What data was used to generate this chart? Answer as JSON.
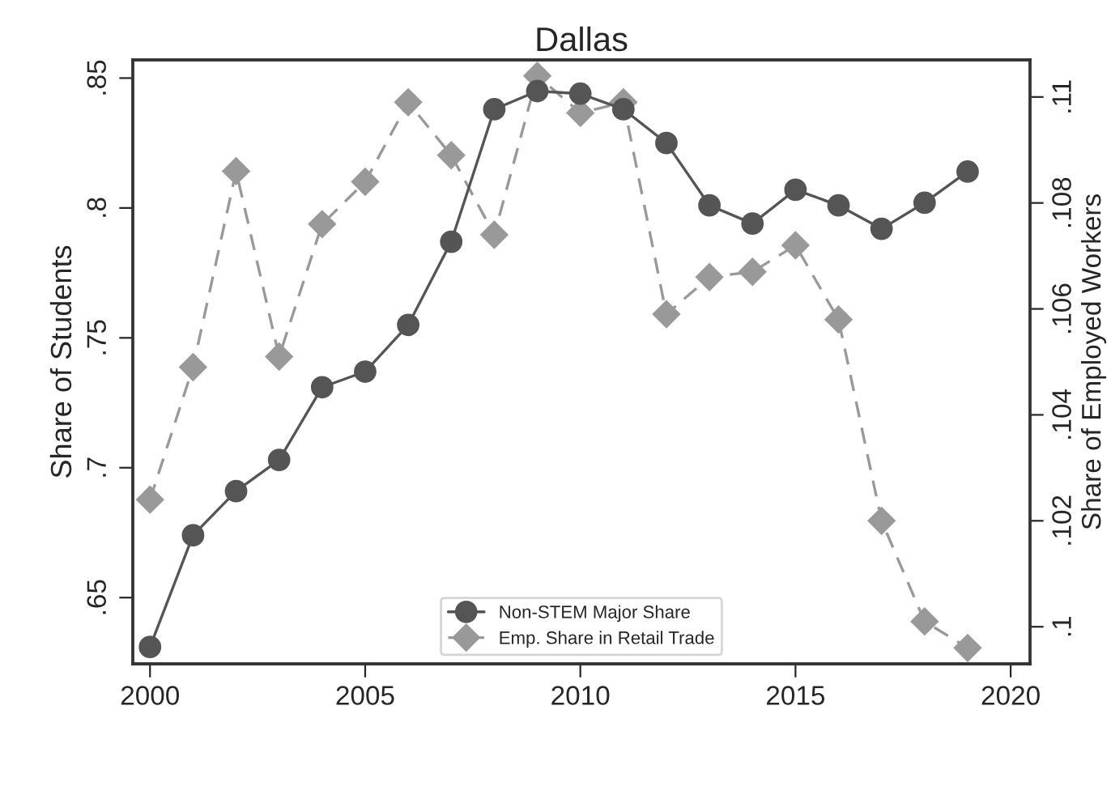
{
  "chart_data": {
    "type": "line",
    "title": "Dallas",
    "ylabel": "Share of Students",
    "y2label": "Share of Employed Workers",
    "x": [
      2000,
      2001,
      2002,
      2003,
      2004,
      2005,
      2006,
      2007,
      2008,
      2009,
      2010,
      2011,
      2012,
      2013,
      2014,
      2015,
      2016,
      2017,
      2018,
      2019
    ],
    "series": [
      {
        "name": "Non-STEM Major Share",
        "color": "#555555",
        "marker": "circle",
        "line_style": "solid",
        "values": [
          0.631,
          0.674,
          0.691,
          0.703,
          0.731,
          0.737,
          0.755,
          0.787,
          0.838,
          0.845,
          0.844,
          0.838,
          0.825,
          0.801,
          0.794,
          0.807,
          0.801,
          0.792,
          0.802,
          0.814
        ]
      },
      {
        "name": "Emp. Share in Retail Trade",
        "color": "#999999",
        "marker": "diamond",
        "line_style": "dashed",
        "axis": "y2",
        "values": [
          0.1024,
          0.1049,
          0.1086,
          0.1051,
          0.1076,
          0.1084,
          0.1099,
          0.1089,
          0.1074,
          0.1104,
          0.1097,
          0.1099,
          0.1059,
          0.1066,
          0.1067,
          0.1072,
          0.1058,
          0.102,
          0.1001,
          0.0996
        ]
      }
    ],
    "xlim": [
      1999.6,
      2020.45
    ],
    "xticks": [
      2000,
      2005,
      2010,
      2015,
      2020
    ],
    "ylim": [
      0.6245,
      0.857
    ],
    "yticks": [
      {
        "value": 0.65,
        "label": ".65"
      },
      {
        "value": 0.7,
        "label": ".7"
      },
      {
        "value": 0.75,
        "label": ".75"
      },
      {
        "value": 0.8,
        "label": ".8"
      },
      {
        "value": 0.85,
        "label": ".85"
      }
    ],
    "y2lim": [
      0.0993,
      0.1107
    ],
    "y2ticks": [
      {
        "value": 0.1,
        "label": ".1"
      },
      {
        "value": 0.102,
        "label": ".102"
      },
      {
        "value": 0.104,
        "label": ".104"
      },
      {
        "value": 0.106,
        "label": ".106"
      },
      {
        "value": 0.108,
        "label": ".108"
      },
      {
        "value": 0.11,
        "label": ".11"
      }
    ],
    "grid": false,
    "legend": "bottom"
  }
}
